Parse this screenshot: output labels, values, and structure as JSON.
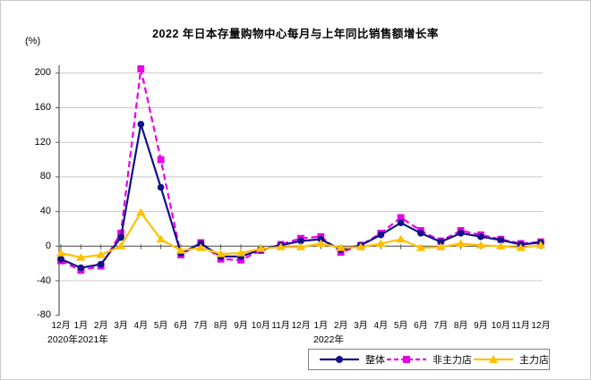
{
  "title": "2022 年日本存量购物中心每月与上年同比销售额增长率",
  "y_axis": {
    "unit": "(%)"
  },
  "x_axis": {
    "year_labels": [
      "2020年2021年",
      "2022年"
    ]
  },
  "chart_data": {
    "type": "line",
    "title": "2022 年日本存量购物中心每月与上年同比销售额增长率",
    "ylabel": "(%)",
    "ylim": [
      -80,
      200
    ],
    "yticks": [
      200,
      160,
      120,
      80,
      40,
      0,
      -40,
      -80
    ],
    "grid": true,
    "legend_position": "bottom-right",
    "x_tick_labels": [
      "12月",
      "1月",
      "2月",
      "3月",
      "4月",
      "5月",
      "6月",
      "7月",
      "8月",
      "9月",
      "10月",
      "11月",
      "12月",
      "1月",
      "2月",
      "3月",
      "4月",
      "5月",
      "6月",
      "7月",
      "8月",
      "9月",
      "10月",
      "11月",
      "12月"
    ],
    "x_period": [
      "2020-12",
      "2021-01",
      "2021-02",
      "2021-03",
      "2021-04",
      "2021-05",
      "2021-06",
      "2021-07",
      "2021-08",
      "2021-09",
      "2021-10",
      "2021-11",
      "2021-12",
      "2022-01",
      "2022-02",
      "2022-03",
      "2022-04",
      "2022-05",
      "2022-06",
      "2022-07",
      "2022-08",
      "2022-09",
      "2022-10",
      "2022-11",
      "2022-12"
    ],
    "series": [
      {
        "name": "整体",
        "color": "#11118c",
        "marker": "circle",
        "dash": false,
        "values": [
          -15,
          -25,
          -21,
          10,
          141,
          68,
          -8,
          3,
          -12,
          -12,
          -4,
          1,
          6,
          8,
          -4,
          1,
          13,
          27,
          15,
          5,
          15,
          11,
          7,
          2,
          4
        ]
      },
      {
        "name": "非主力店",
        "color": "#e600e6",
        "marker": "square",
        "dash": true,
        "values": [
          -17,
          -28,
          -23,
          15,
          205,
          100,
          -10,
          4,
          -15,
          -16,
          -5,
          2,
          9,
          11,
          -7,
          1,
          15,
          33,
          18,
          6,
          18,
          13,
          8,
          3,
          5
        ]
      },
      {
        "name": "主力店",
        "color": "#ffc000",
        "marker": "triangle",
        "dash": false,
        "values": [
          -8,
          -13,
          -10,
          0,
          39,
          8,
          -5,
          -2,
          -9,
          -8,
          -3,
          -1,
          -1,
          3,
          -2,
          -1,
          3,
          8,
          -2,
          -1,
          3,
          1,
          0,
          -2,
          1
        ]
      }
    ]
  }
}
